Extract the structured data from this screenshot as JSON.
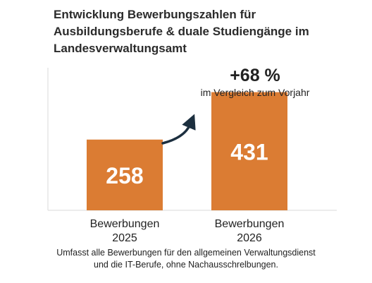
{
  "title_lines": [
    "Entwicklung Bewerbungszahlen für",
    "Ausbildungsberufe & duale Studiengänge im",
    "Landesverwaltungsamt"
  ],
  "annotation": {
    "value": "+68 %",
    "text": "im Vergleich zum Vorjahr"
  },
  "footnote_lines": [
    "Umfasst alle Bewerbungen für den allgemeinen Verwaltungsdienst",
    "und die IT-Berufe, ohne Nachausschrelbungen."
  ],
  "colors": {
    "bar": "#DB7C33",
    "axis": "#e6e6e6",
    "arrow": "#1c2f3f"
  },
  "chart_data": {
    "type": "bar",
    "categories": [
      "Bewerbungen 2025",
      "Bewerbungen 2026"
    ],
    "category_lines": [
      [
        "Bewerbungen",
        "2025"
      ],
      [
        "Bewerbungen",
        "2026"
      ]
    ],
    "values": [
      258,
      431
    ],
    "data_labels": [
      "258",
      "431"
    ],
    "ylim": [
      0,
      520
    ],
    "grid": false,
    "legend": "none",
    "xlabel": "",
    "ylabel": ""
  }
}
